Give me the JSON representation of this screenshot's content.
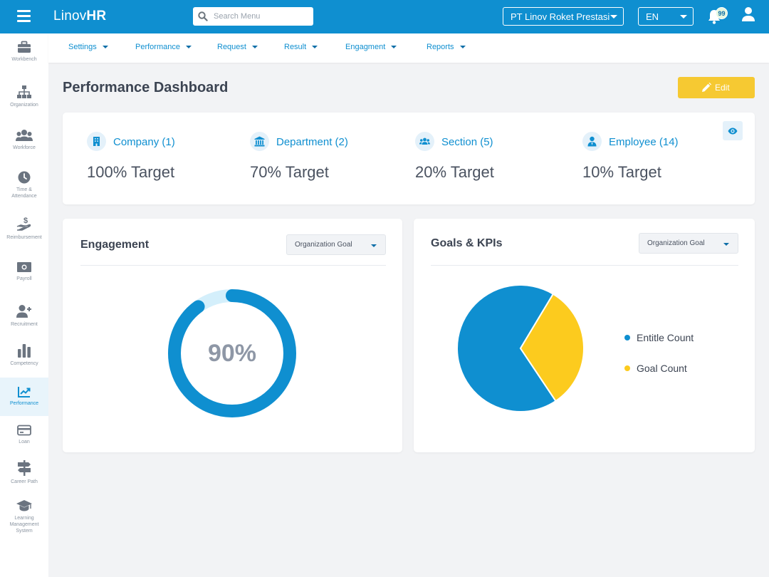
{
  "header": {
    "brand_regular": "Linov",
    "brand_bold": "HR",
    "search_placeholder": "Search Menu",
    "company": "PT Linov Roket Prestasi",
    "language": "EN",
    "notification_count": "99"
  },
  "sidebar": {
    "items": [
      {
        "label": "Workbench",
        "icon": "briefcase-icon"
      },
      {
        "label": "Organization",
        "icon": "org-chart-icon"
      },
      {
        "label": "Workforce",
        "icon": "people-icon"
      },
      {
        "label": "Time & Attendance",
        "icon": "clock-icon"
      },
      {
        "label": "Reimbursement",
        "icon": "hand-dollar-icon"
      },
      {
        "label": "Payroll",
        "icon": "banknote-icon"
      },
      {
        "label": "Recruitment",
        "icon": "user-plus-icon"
      },
      {
        "label": "Competency",
        "icon": "bar-chart-icon"
      },
      {
        "label": "Performance",
        "icon": "trend-chart-icon"
      },
      {
        "label": "Loan",
        "icon": "credit-card-icon"
      },
      {
        "label": "Career Path",
        "icon": "signpost-icon"
      },
      {
        "label": "Learning Management System",
        "icon": "graduation-cap-icon"
      }
    ],
    "active": "Performance"
  },
  "subnav": {
    "items": [
      "Settings",
      "Performance",
      "Request",
      "Result",
      "Engagment",
      "Reports"
    ]
  },
  "page": {
    "title": "Performance Dashboard",
    "edit_label": "Edit"
  },
  "targets": [
    {
      "name": "Company (1)",
      "value": "100% Target",
      "icon": "building-icon"
    },
    {
      "name": "Department (2)",
      "value": "70% Target",
      "icon": "bank-icon"
    },
    {
      "name": "Section (5)",
      "value": "20% Target",
      "icon": "group-icon"
    },
    {
      "name": "Employee (14)",
      "value": "10% Target",
      "icon": "employee-icon"
    }
  ],
  "engagement": {
    "title": "Engagement",
    "filter": "Organization Goal",
    "percent_label": "90%",
    "percent": 90
  },
  "goals": {
    "title": "Goals & KPIs",
    "filter": "Organization Goal"
  },
  "colors": {
    "primary": "#0f8fd0",
    "accent": "#f6c932",
    "ring_track": "#d4effb",
    "pie_blue": "#0f8fd0",
    "pie_yellow": "#fccb1e"
  },
  "chart_data": {
    "type": "pie",
    "labels": [
      "Entitle Count",
      "Goal Count"
    ],
    "values": [
      68,
      32
    ],
    "legend": "right"
  }
}
